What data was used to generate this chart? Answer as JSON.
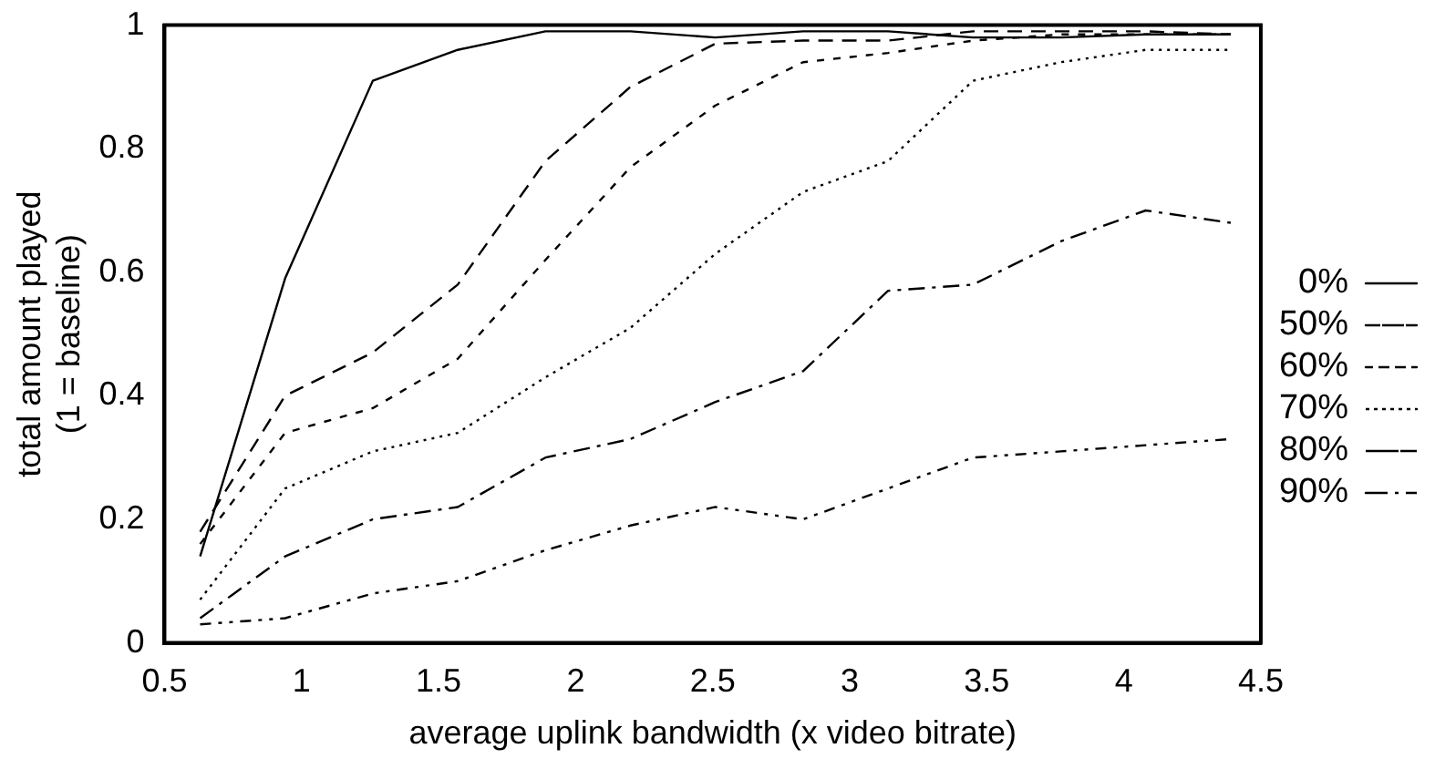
{
  "chart_data": {
    "type": "line",
    "xlabel": "average uplink bandwidth (x video bitrate)",
    "ylabel": "total amount played\n(1 = baseline)",
    "x": [
      0.63,
      0.94,
      1.26,
      1.57,
      1.89,
      2.2,
      2.51,
      2.83,
      3.14,
      3.45,
      3.77,
      4.08,
      4.39
    ],
    "xlim": [
      0.5,
      4.5
    ],
    "xticks": [
      0.5,
      1,
      1.5,
      2,
      2.5,
      3,
      3.5,
      4,
      4.5
    ],
    "ylim": [
      0,
      1
    ],
    "yticks": [
      0,
      0.2,
      0.4,
      0.6,
      0.8,
      1
    ],
    "grid": false,
    "legend": "right",
    "marker": "none",
    "series": [
      {
        "name": "0%",
        "color": "#000000",
        "line_style": "solid",
        "values": [
          0.14,
          0.59,
          0.91,
          0.96,
          0.99,
          0.99,
          0.98,
          0.99,
          0.99,
          0.98,
          0.98,
          0.985,
          0.985
        ]
      },
      {
        "name": "50%",
        "color": "#000000",
        "line_style": "dashed",
        "values": [
          0.18,
          0.4,
          0.47,
          0.58,
          0.78,
          0.9,
          0.97,
          0.975,
          0.975,
          0.99,
          0.99,
          0.99,
          0.985
        ]
      },
      {
        "name": "60%",
        "color": "#000000",
        "line_style": "dashed",
        "values": [
          0.16,
          0.34,
          0.38,
          0.46,
          0.62,
          0.77,
          0.87,
          0.94,
          0.955,
          0.975,
          0.985,
          0.985,
          0.985
        ]
      },
      {
        "name": "70%",
        "color": "#000000",
        "line_style": "dotted",
        "values": [
          0.07,
          0.25,
          0.31,
          0.34,
          0.43,
          0.51,
          0.63,
          0.73,
          0.78,
          0.91,
          0.94,
          0.96,
          0.96
        ]
      },
      {
        "name": "80%",
        "color": "#000000",
        "line_style": "dashed",
        "values": [
          0.04,
          0.14,
          0.2,
          0.22,
          0.3,
          0.33,
          0.39,
          0.44,
          0.57,
          0.58,
          0.65,
          0.7,
          0.68
        ]
      },
      {
        "name": "90%",
        "color": "#000000",
        "line_style": "dashed",
        "values": [
          0.03,
          0.04,
          0.08,
          0.1,
          0.15,
          0.19,
          0.22,
          0.2,
          0.25,
          0.3,
          0.31,
          0.32,
          0.33
        ]
      }
    ]
  }
}
